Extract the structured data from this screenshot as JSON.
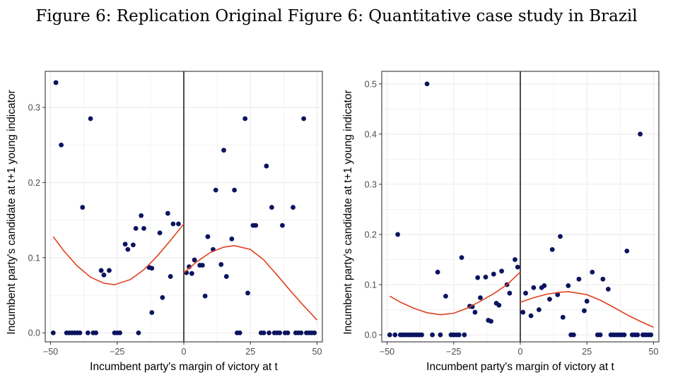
{
  "figure_title": "Figure 6: Replication Original Figure 6: Quantitative case study in Brazil",
  "colors": {
    "point": "#0b1460",
    "fit": "#e0401f",
    "cutoff": "#000000",
    "grid": "#ebebeb",
    "panel_border": "#333333"
  },
  "chart_data": [
    {
      "type": "scatter",
      "title": "",
      "xlabel": "Incumbent party's margin of victory at t",
      "ylabel": "Incumbent party's candidate at t+1 young indicator",
      "xlim": [
        -52,
        52
      ],
      "ylim": [
        -0.012,
        0.348
      ],
      "xticks": [
        -50,
        -25,
        0,
        25,
        50
      ],
      "xtick_labels": [
        "−50",
        "−25",
        "0",
        "25",
        "50"
      ],
      "yticks": [
        0,
        0.1,
        0.2,
        0.3
      ],
      "ytick_labels": [
        "0.0",
        "0.1",
        "0.2",
        "0.3"
      ],
      "grid": true,
      "cutoff_x": 0,
      "points": [
        [
          -48,
          0.333
        ],
        [
          -46,
          0.25
        ],
        [
          -35,
          0.285
        ],
        [
          -38,
          0.167
        ],
        [
          -16,
          0.156
        ],
        [
          -6,
          0.159
        ],
        [
          -4,
          0.145
        ],
        [
          -2,
          0.145
        ],
        [
          -15,
          0.139
        ],
        [
          -18,
          0.139
        ],
        [
          -9,
          0.133
        ],
        [
          -22,
          0.118
        ],
        [
          -21,
          0.111
        ],
        [
          -19,
          0.117
        ],
        [
          -31,
          0.083
        ],
        [
          -30,
          0.077
        ],
        [
          -28,
          0.083
        ],
        [
          -13,
          0.087
        ],
        [
          -12,
          0.086
        ],
        [
          -5,
          0.075
        ],
        [
          -8,
          0.047
        ],
        [
          -12,
          0.027
        ],
        [
          -49,
          0
        ],
        [
          -44,
          0
        ],
        [
          -43,
          0
        ],
        [
          -42,
          0
        ],
        [
          -41,
          0
        ],
        [
          -40,
          0
        ],
        [
          -39,
          0
        ],
        [
          -36,
          0
        ],
        [
          -34,
          0
        ],
        [
          -33,
          0
        ],
        [
          -26,
          0
        ],
        [
          -25,
          0
        ],
        [
          -24,
          0
        ],
        [
          -17,
          0
        ],
        [
          1,
          0.08
        ],
        [
          2,
          0.088
        ],
        [
          3,
          0.079
        ],
        [
          4,
          0.097
        ],
        [
          6,
          0.09
        ],
        [
          7,
          0.09
        ],
        [
          8,
          0.049
        ],
        [
          9,
          0.128
        ],
        [
          11,
          0.111
        ],
        [
          12,
          0.19
        ],
        [
          14,
          0.091
        ],
        [
          15,
          0.243
        ],
        [
          16,
          0.075
        ],
        [
          18,
          0.125
        ],
        [
          19,
          0.19
        ],
        [
          23,
          0.285
        ],
        [
          24,
          0.053
        ],
        [
          26,
          0.143
        ],
        [
          27,
          0.143
        ],
        [
          31,
          0.222
        ],
        [
          33,
          0.167
        ],
        [
          37,
          0.143
        ],
        [
          41,
          0.167
        ],
        [
          45,
          0.285
        ],
        [
          20,
          0
        ],
        [
          21,
          0
        ],
        [
          29,
          0
        ],
        [
          30,
          0
        ],
        [
          32,
          0
        ],
        [
          34,
          0
        ],
        [
          35,
          0
        ],
        [
          36,
          0
        ],
        [
          38,
          0
        ],
        [
          39,
          0
        ],
        [
          42,
          0
        ],
        [
          43,
          0
        ],
        [
          44,
          0
        ],
        [
          46,
          0
        ],
        [
          47,
          0
        ],
        [
          48,
          0
        ],
        [
          49,
          0
        ]
      ],
      "fit_left": [
        [
          -49,
          0.128
        ],
        [
          -45,
          0.109
        ],
        [
          -40,
          0.089
        ],
        [
          -35,
          0.074
        ],
        [
          -30,
          0.066
        ],
        [
          -26,
          0.064
        ],
        [
          -20,
          0.071
        ],
        [
          -15,
          0.084
        ],
        [
          -10,
          0.102
        ],
        [
          -5,
          0.123
        ],
        [
          0,
          0.145
        ]
      ],
      "fit_right": [
        [
          0,
          0.08
        ],
        [
          5,
          0.095
        ],
        [
          10,
          0.107
        ],
        [
          15,
          0.114
        ],
        [
          19,
          0.116
        ],
        [
          25,
          0.111
        ],
        [
          30,
          0.097
        ],
        [
          35,
          0.077
        ],
        [
          40,
          0.056
        ],
        [
          45,
          0.036
        ],
        [
          50,
          0.017
        ]
      ]
    },
    {
      "type": "scatter",
      "title": "",
      "xlabel": "Incumbent party's margin of victory at t",
      "ylabel": "Incumbent party's candidate at t+1 young indicator",
      "xlim": [
        -52,
        52
      ],
      "ylim": [
        -0.014,
        0.525
      ],
      "xticks": [
        -50,
        -25,
        0,
        25,
        50
      ],
      "xtick_labels": [
        "−50",
        "−25",
        "0",
        "25",
        "50"
      ],
      "yticks": [
        0,
        0.1,
        0.2,
        0.3,
        0.4,
        0.5
      ],
      "ytick_labels": [
        "0.0",
        "0.1",
        "0.2",
        "0.3",
        "0.4",
        "0.5"
      ],
      "grid": true,
      "cutoff_x": 0,
      "points": [
        [
          -35,
          0.5
        ],
        [
          -46,
          0.2
        ],
        [
          -22,
          0.154
        ],
        [
          -31,
          0.125
        ],
        [
          -2,
          0.15
        ],
        [
          -1,
          0.135
        ],
        [
          -7,
          0.127
        ],
        [
          -10,
          0.121
        ],
        [
          -13,
          0.115
        ],
        [
          -16,
          0.114
        ],
        [
          -28,
          0.077
        ],
        [
          -15,
          0.074
        ],
        [
          -4,
          0.083
        ],
        [
          -5,
          0.1
        ],
        [
          -9,
          0.063
        ],
        [
          -8,
          0.059
        ],
        [
          -19,
          0.057
        ],
        [
          -18,
          0.056
        ],
        [
          -17,
          0.045
        ],
        [
          -12,
          0.029
        ],
        [
          -11,
          0.027
        ],
        [
          -49,
          0
        ],
        [
          -47,
          0
        ],
        [
          -45,
          0
        ],
        [
          -44,
          0
        ],
        [
          -43,
          0
        ],
        [
          -42,
          0
        ],
        [
          -41,
          0
        ],
        [
          -40,
          0
        ],
        [
          -39,
          0
        ],
        [
          -38,
          0
        ],
        [
          -37,
          0
        ],
        [
          -33,
          0
        ],
        [
          -30,
          0
        ],
        [
          -26,
          0
        ],
        [
          -25,
          0
        ],
        [
          -24,
          0
        ],
        [
          -23,
          0
        ],
        [
          -21,
          0
        ],
        [
          1,
          0.045
        ],
        [
          2,
          0.083
        ],
        [
          4,
          0.038
        ],
        [
          5,
          0.094
        ],
        [
          7,
          0.05
        ],
        [
          8,
          0.094
        ],
        [
          9,
          0.098
        ],
        [
          11,
          0.071
        ],
        [
          12,
          0.17
        ],
        [
          14,
          0.08
        ],
        [
          15,
          0.196
        ],
        [
          16,
          0.035
        ],
        [
          18,
          0.098
        ],
        [
          19,
          0.0
        ],
        [
          20,
          0.0
        ],
        [
          22,
          0.111
        ],
        [
          24,
          0.048
        ],
        [
          25,
          0.067
        ],
        [
          27,
          0.125
        ],
        [
          31,
          0.111
        ],
        [
          33,
          0.091
        ],
        [
          40,
          0.167
        ],
        [
          45,
          0.4
        ],
        [
          29,
          0
        ],
        [
          30,
          0
        ],
        [
          34,
          0
        ],
        [
          35,
          0
        ],
        [
          36,
          0
        ],
        [
          37,
          0
        ],
        [
          38,
          0
        ],
        [
          39,
          0
        ],
        [
          42,
          0
        ],
        [
          43,
          0
        ],
        [
          44,
          0
        ],
        [
          46,
          0
        ],
        [
          47,
          0
        ],
        [
          48,
          0
        ],
        [
          49,
          0
        ]
      ],
      "fit_left": [
        [
          -49,
          0.077
        ],
        [
          -45,
          0.065
        ],
        [
          -40,
          0.053
        ],
        [
          -35,
          0.044
        ],
        [
          -30,
          0.04
        ],
        [
          -25,
          0.043
        ],
        [
          -20,
          0.053
        ],
        [
          -15,
          0.067
        ],
        [
          -10,
          0.082
        ],
        [
          -5,
          0.1
        ],
        [
          0,
          0.125
        ]
      ],
      "fit_right": [
        [
          0,
          0.065
        ],
        [
          5,
          0.074
        ],
        [
          10,
          0.081
        ],
        [
          15,
          0.085
        ],
        [
          18,
          0.086
        ],
        [
          25,
          0.08
        ],
        [
          30,
          0.069
        ],
        [
          35,
          0.055
        ],
        [
          40,
          0.04
        ],
        [
          45,
          0.027
        ],
        [
          50,
          0.015
        ]
      ]
    }
  ]
}
